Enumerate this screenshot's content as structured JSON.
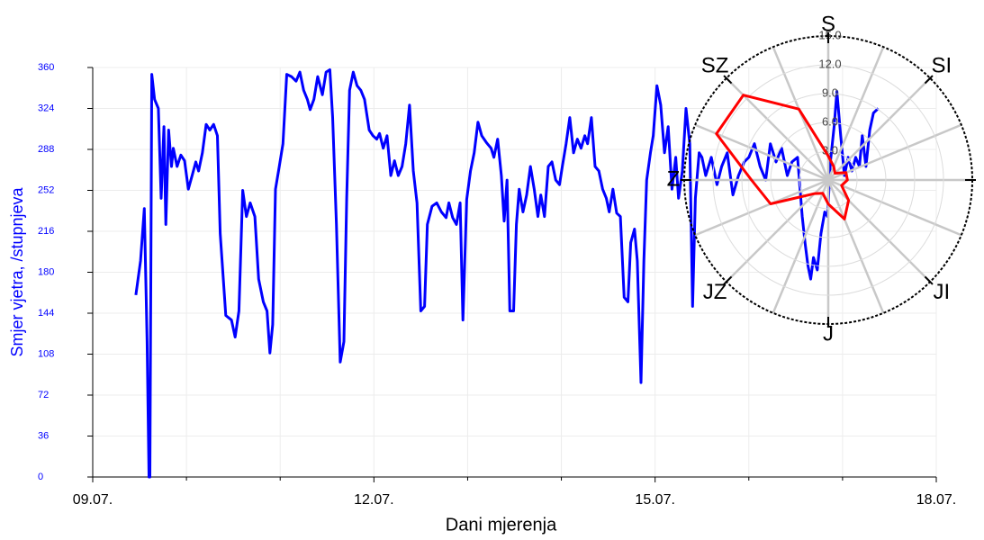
{
  "chart_data": [
    {
      "type": "line",
      "ylabel": "Smjer vjetra, /stupnjeva",
      "xlabel": "Dani mjerenja",
      "xlim": [
        9,
        18
      ],
      "xticks": [
        {
          "value": 9,
          "label": "09.07."
        },
        {
          "value": 12,
          "label": "12.07."
        },
        {
          "value": 15,
          "label": "15.07."
        },
        {
          "value": 18,
          "label": "18.07."
        }
      ],
      "minor_xticks": [
        10,
        11,
        13,
        14,
        16,
        17
      ],
      "ylim": [
        0,
        360
      ],
      "yticks": [
        0,
        36,
        72,
        108,
        144,
        180,
        216,
        252,
        288,
        324,
        360
      ],
      "grid": true,
      "x": [
        9.46,
        9.51,
        9.55,
        9.58,
        9.6,
        9.61,
        9.63,
        9.66,
        9.7,
        9.73,
        9.76,
        9.78,
        9.81,
        9.84,
        9.86,
        9.9,
        9.94,
        9.98,
        10.02,
        10.06,
        10.1,
        10.13,
        10.17,
        10.21,
        10.25,
        10.29,
        10.33,
        10.36,
        10.42,
        10.48,
        10.52,
        10.56,
        10.6,
        10.64,
        10.68,
        10.73,
        10.77,
        10.82,
        10.86,
        10.89,
        10.92,
        10.95,
        10.99,
        11.03,
        11.07,
        11.12,
        11.17,
        11.21,
        11.25,
        11.29,
        11.32,
        11.36,
        11.4,
        11.45,
        11.49,
        11.53,
        11.56,
        11.6,
        11.64,
        11.68,
        11.71,
        11.74,
        11.78,
        11.82,
        11.86,
        11.9,
        11.95,
        11.99,
        12.03,
        12.06,
        12.1,
        12.14,
        12.18,
        12.22,
        12.26,
        12.3,
        12.34,
        12.38,
        12.42,
        12.46,
        12.5,
        12.54,
        12.57,
        12.62,
        12.67,
        12.72,
        12.77,
        12.8,
        12.84,
        12.88,
        12.92,
        12.95,
        12.99,
        13.03,
        13.07,
        13.11,
        13.15,
        13.2,
        13.25,
        13.28,
        13.32,
        13.36,
        13.39,
        13.42,
        13.45,
        13.49,
        13.52,
        13.55,
        13.59,
        13.63,
        13.67,
        13.71,
        13.75,
        13.78,
        13.82,
        13.86,
        13.9,
        13.94,
        13.98,
        14.01,
        14.05,
        14.09,
        14.13,
        14.17,
        14.21,
        14.25,
        14.28,
        14.32,
        14.36,
        14.4,
        14.44,
        14.48,
        14.51,
        14.55,
        14.59,
        14.63,
        14.67,
        14.71,
        14.74,
        14.78,
        14.81,
        14.85,
        14.88,
        14.91,
        14.95,
        14.98,
        15.02,
        15.06,
        15.1,
        15.14,
        15.18,
        15.22,
        15.25,
        15.29,
        15.33,
        15.37,
        15.4,
        15.43,
        15.47,
        15.5,
        15.54,
        15.6,
        15.66,
        15.71,
        15.77,
        15.83,
        15.89,
        15.95,
        16.0,
        16.06,
        16.12,
        16.18,
        16.23,
        16.29,
        16.35,
        16.41,
        16.46,
        16.52,
        16.57,
        16.6,
        16.63,
        16.66,
        16.69,
        16.73,
        16.77,
        16.81,
        16.84,
        16.87,
        16.91,
        16.94,
        16.98,
        17.02,
        17.06,
        17.1,
        17.14,
        17.18,
        17.21,
        17.25,
        17.29,
        17.33,
        17.38
      ],
      "series": [
        {
          "color": "#0000ff",
          "values": [
            160,
            190,
            236,
            119,
            0,
            0,
            354,
            332,
            324,
            245,
            308,
            222,
            305,
            273,
            289,
            273,
            283,
            278,
            253,
            265,
            277,
            269,
            285,
            310,
            305,
            310,
            300,
            214,
            142,
            138,
            123,
            146,
            252,
            229,
            241,
            229,
            174,
            154,
            146,
            109,
            134,
            253,
            273,
            293,
            354,
            352,
            348,
            356,
            340,
            332,
            323,
            332,
            352,
            336,
            356,
            358,
            316,
            222,
            101,
            119,
            245,
            340,
            356,
            344,
            340,
            332,
            305,
            300,
            297,
            302,
            289,
            300,
            265,
            278,
            265,
            273,
            293,
            327,
            269,
            241,
            146,
            150,
            222,
            238,
            241,
            233,
            228,
            241,
            228,
            222,
            241,
            138,
            244,
            269,
            285,
            312,
            300,
            294,
            289,
            281,
            297,
            265,
            225,
            261,
            146,
            146,
            222,
            253,
            233,
            248,
            273,
            253,
            229,
            248,
            229,
            273,
            277,
            261,
            257,
            273,
            293,
            316,
            285,
            297,
            289,
            300,
            293,
            316,
            273,
            269,
            253,
            245,
            233,
            253,
            232,
            229,
            158,
            154,
            206,
            218,
            190,
            83,
            190,
            261,
            285,
            300,
            344,
            327,
            285,
            308,
            253,
            281,
            245,
            269,
            324,
            293,
            150,
            245,
            285,
            281,
            265,
            281,
            257,
            273,
            285,
            248,
            265,
            277,
            281,
            293,
            273,
            261,
            293,
            277,
            289,
            265,
            277,
            281,
            229,
            206,
            186,
            174,
            193,
            182,
            214,
            233,
            229,
            277,
            308,
            339,
            300,
            265,
            281,
            269,
            281,
            273,
            300,
            273,
            305,
            320,
            324
          ]
        }
      ]
    },
    {
      "type": "polar",
      "compass": [
        "S",
        "SI",
        null,
        "JI",
        "J",
        "JZ",
        "Z",
        "SZ"
      ],
      "rlim": [
        0,
        15
      ],
      "rticks": [
        {
          "value": 3,
          "label": "3.0"
        },
        {
          "value": 6,
          "label": "6.0"
        },
        {
          "value": 9,
          "label": "9.0"
        },
        {
          "value": 12,
          "label": "12.0"
        },
        {
          "value": 15,
          "label": "15.0"
        }
      ],
      "color": "#ff0000",
      "values": [
        2.5,
        1.5,
        1.0,
        2.0,
        2.0,
        1.5,
        3.0,
        4.4,
        2.5,
        1.5,
        2.0,
        6.5,
        8.0,
        12.6,
        12.5,
        8.0
      ]
    }
  ]
}
